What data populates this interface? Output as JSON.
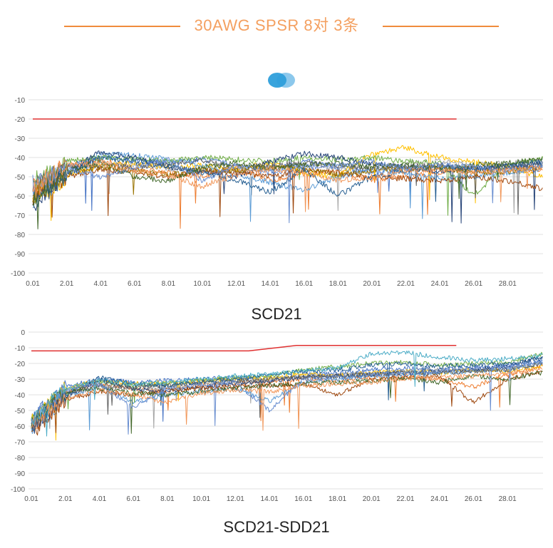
{
  "header": {
    "title": "30AWG SPSR 8对 3条"
  },
  "legend": {
    "colors": [
      "#2E9FDB",
      "#8CC8EC"
    ]
  },
  "chart_data": [
    {
      "type": "line",
      "title": "SCD21",
      "xlabel": "",
      "ylabel": "",
      "xlim": [
        0.01,
        30.1
      ],
      "ylim": [
        -100,
        -10
      ],
      "yticks": [
        "-10",
        "-20",
        "-30",
        "-40",
        "-50",
        "-60",
        "-70",
        "-80",
        "-90",
        "-100"
      ],
      "xticks": [
        "0.01",
        "2.01",
        "4.01",
        "6.01",
        "8.01",
        "10.01",
        "12.01",
        "14.01",
        "16.01",
        "18.01",
        "20.01",
        "22.01",
        "24.01",
        "26.01",
        "28.01"
      ],
      "grid": true,
      "limit_line": {
        "color": "#E03030",
        "x": [
          0.01,
          25
        ],
        "y": [
          -20,
          -20
        ]
      },
      "x_samples": [
        0,
        2,
        4,
        6,
        8,
        10,
        12,
        14,
        16,
        18,
        20,
        22,
        24,
        26,
        28,
        30
      ],
      "series": [
        {
          "color": "#4472C4",
          "values": [
            -60,
            -45,
            -40,
            -42,
            -43,
            -41,
            -44,
            -47,
            -42,
            -45,
            -48,
            -46,
            -44,
            -47,
            -45,
            -44
          ]
        },
        {
          "color": "#ED7D31",
          "values": [
            -55,
            -44,
            -41,
            -46,
            -48,
            -50,
            -45,
            -52,
            -49,
            -47,
            -52,
            -50,
            -48,
            -45,
            -46,
            -47
          ]
        },
        {
          "color": "#A5A5A5",
          "values": [
            -58,
            -47,
            -43,
            -44,
            -46,
            -48,
            -47,
            -45,
            -44,
            -46,
            -45,
            -43,
            -42,
            -44,
            -43,
            -42
          ]
        },
        {
          "color": "#FFC000",
          "values": [
            -62,
            -50,
            -44,
            -43,
            -45,
            -44,
            -46,
            -43,
            -48,
            -50,
            -38,
            -35,
            -40,
            -42,
            -45,
            -50
          ]
        },
        {
          "color": "#5B9BD5",
          "values": [
            -57,
            -46,
            -38,
            -39,
            -41,
            -44,
            -49,
            -53,
            -57,
            -50,
            -46,
            -48,
            -51,
            -50,
            -48,
            -46
          ]
        },
        {
          "color": "#70AD47",
          "values": [
            -53,
            -42,
            -40,
            -41,
            -42,
            -40,
            -41,
            -42,
            -40,
            -41,
            -40,
            -42,
            -43,
            -60,
            -44,
            -40
          ]
        },
        {
          "color": "#264478",
          "values": [
            -65,
            -48,
            -37,
            -40,
            -45,
            -47,
            -50,
            -42,
            -38,
            -40,
            -43,
            -45,
            -47,
            -46,
            -44,
            -43
          ]
        },
        {
          "color": "#9E480E",
          "values": [
            -60,
            -50,
            -46,
            -48,
            -50,
            -47,
            -48,
            -50,
            -47,
            -48,
            -50,
            -51,
            -52,
            -50,
            -52,
            -56
          ]
        },
        {
          "color": "#636363",
          "values": [
            -56,
            -45,
            -44,
            -45,
            -43,
            -42,
            -45,
            -44,
            -43,
            -44,
            -46,
            -45,
            -44,
            -46,
            -45,
            -44
          ]
        },
        {
          "color": "#997300",
          "values": [
            -59,
            -48,
            -45,
            -47,
            -49,
            -46,
            -47,
            -45,
            -46,
            -49,
            -47,
            -46,
            -45,
            -48,
            -47,
            -45
          ]
        },
        {
          "color": "#255E91",
          "values": [
            -63,
            -49,
            -40,
            -42,
            -44,
            -48,
            -52,
            -58,
            -46,
            -60,
            -50,
            -47,
            -45,
            -46,
            -44,
            -42
          ]
        },
        {
          "color": "#43682B",
          "values": [
            -61,
            -47,
            -42,
            -50,
            -52,
            -45,
            -43,
            -46,
            -44,
            -43,
            -45,
            -44,
            -46,
            -44,
            -43,
            -41
          ]
        },
        {
          "color": "#698ED0",
          "values": [
            -54,
            -46,
            -50,
            -45,
            -41,
            -52,
            -44,
            -48,
            -45,
            -44,
            -42,
            -46,
            -44,
            -45,
            -47,
            -44
          ]
        },
        {
          "color": "#F1975A",
          "values": [
            -58,
            -44,
            -43,
            -47,
            -49,
            -55,
            -49,
            -46,
            -48,
            -52,
            -50,
            -47,
            -46,
            -48,
            -47,
            -45
          ]
        }
      ]
    },
    {
      "type": "line",
      "title": "SCD21-SDD21",
      "xlabel": "",
      "ylabel": "",
      "xlim": [
        0.01,
        30.1
      ],
      "ylim": [
        -100,
        0
      ],
      "yticks": [
        "0",
        "-10",
        "-20",
        "-30",
        "-40",
        "-50",
        "-60",
        "-70",
        "-80",
        "-90",
        "-100"
      ],
      "xticks": [
        "0.01",
        "2.01",
        "4.01",
        "6.01",
        "8.01",
        "10.01",
        "12.01",
        "14.01",
        "16.01",
        "18.01",
        "20.01",
        "22.01",
        "24.01",
        "26.01",
        "28.01"
      ],
      "grid": true,
      "limit_line": {
        "color": "#E03030",
        "x": [
          0.01,
          12.8,
          15.6,
          25
        ],
        "y": [
          -12,
          -12,
          -8.5,
          -8.5
        ]
      },
      "x_samples": [
        0,
        2,
        4,
        6,
        8,
        10,
        12,
        14,
        16,
        18,
        20,
        22,
        24,
        26,
        28,
        30
      ],
      "series": [
        {
          "color": "#4472C4",
          "values": [
            -55,
            -35,
            -30,
            -32,
            -31,
            -30,
            -29,
            -31,
            -27,
            -26,
            -24,
            -23,
            -24,
            -23,
            -22,
            -18
          ]
        },
        {
          "color": "#ED7D31",
          "values": [
            -58,
            -38,
            -33,
            -36,
            -38,
            -34,
            -33,
            -32,
            -30,
            -31,
            -29,
            -28,
            -30,
            -35,
            -27,
            -22
          ]
        },
        {
          "color": "#A5A5A5",
          "values": [
            -60,
            -40,
            -35,
            -37,
            -35,
            -33,
            -32,
            -30,
            -28,
            -27,
            -26,
            -25,
            -24,
            -25,
            -24,
            -20
          ]
        },
        {
          "color": "#FFC000",
          "values": [
            -57,
            -36,
            -31,
            -33,
            -32,
            -31,
            -30,
            -29,
            -27,
            -28,
            -26,
            -25,
            -26,
            -24,
            -25,
            -22
          ]
        },
        {
          "color": "#5B9BD5",
          "values": [
            -62,
            -42,
            -34,
            -45,
            -40,
            -38,
            -36,
            -44,
            -32,
            -30,
            -28,
            -27,
            -26,
            -25,
            -24,
            -20
          ]
        },
        {
          "color": "#70AD47",
          "values": [
            -56,
            -37,
            -32,
            -34,
            -33,
            -31,
            -29,
            -28,
            -24,
            -22,
            -20,
            -19,
            -21,
            -20,
            -19,
            -14
          ]
        },
        {
          "color": "#264478",
          "values": [
            -63,
            -41,
            -30,
            -36,
            -38,
            -35,
            -33,
            -31,
            -29,
            -28,
            -27,
            -26,
            -25,
            -24,
            -22,
            -16
          ]
        },
        {
          "color": "#9E480E",
          "values": [
            -65,
            -43,
            -38,
            -40,
            -37,
            -36,
            -35,
            -34,
            -33,
            -40,
            -30,
            -29,
            -28,
            -45,
            -30,
            -25
          ]
        },
        {
          "color": "#636363",
          "values": [
            -59,
            -39,
            -34,
            -35,
            -34,
            -32,
            -31,
            -30,
            -29,
            -28,
            -27,
            -26,
            -26,
            -25,
            -24,
            -20
          ]
        },
        {
          "color": "#255E91",
          "values": [
            -61,
            -40,
            -29,
            -33,
            -34,
            -32,
            -30,
            -27,
            -25,
            -24,
            -21,
            -20,
            -22,
            -21,
            -20,
            -17
          ]
        },
        {
          "color": "#43682B",
          "values": [
            -58,
            -38,
            -36,
            -39,
            -40,
            -38,
            -36,
            -34,
            -33,
            -32,
            -31,
            -30,
            -32,
            -28,
            -30,
            -26
          ]
        },
        {
          "color": "#698ED0",
          "values": [
            -57,
            -37,
            -33,
            -48,
            -36,
            -34,
            -32,
            -50,
            -30,
            -29,
            -27,
            -26,
            -25,
            -23,
            -22,
            -19
          ]
        },
        {
          "color": "#F1975A",
          "values": [
            -60,
            -42,
            -37,
            -40,
            -45,
            -39,
            -37,
            -38,
            -34,
            -33,
            -32,
            -30,
            -29,
            -28,
            -27,
            -23
          ]
        },
        {
          "color": "#4BACC6",
          "values": [
            -56,
            -36,
            -31,
            -33,
            -32,
            -30,
            -28,
            -27,
            -25,
            -23,
            -14,
            -13,
            -16,
            -18,
            -17,
            -15
          ]
        }
      ]
    }
  ]
}
